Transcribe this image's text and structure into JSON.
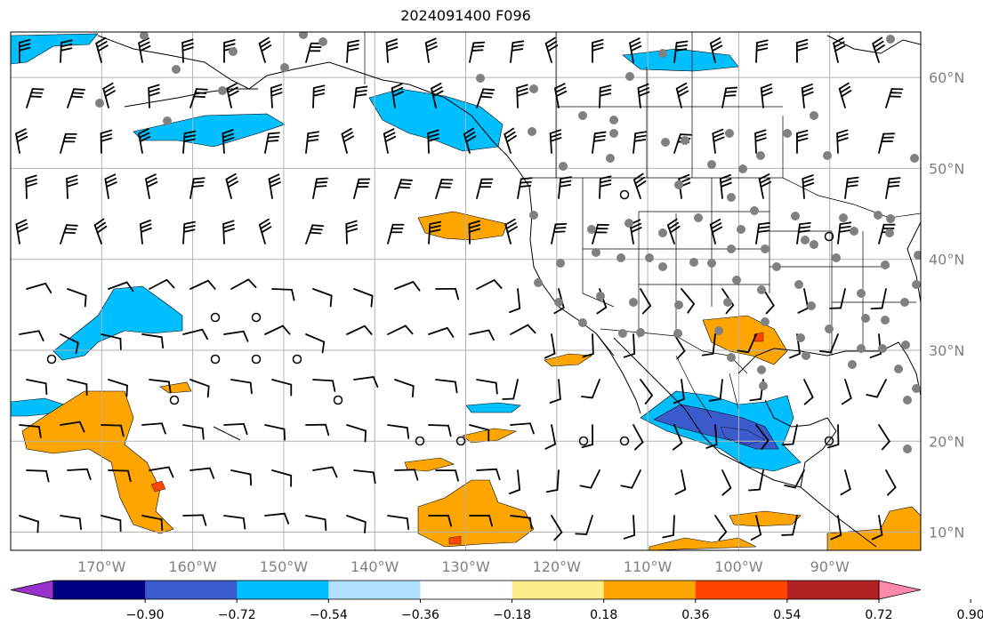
{
  "title": "2024091400 F096",
  "map": {
    "projection": "plate-carree",
    "lon_range": [
      -180,
      -80
    ],
    "lat_range": [
      8,
      65
    ],
    "grid": true,
    "lon_labels": [
      "170°W",
      "160°W",
      "150°W",
      "140°W",
      "130°W",
      "120°W",
      "110°W",
      "100°W",
      "90°W"
    ],
    "lat_labels": [
      "60°N",
      "50°N",
      "40°N",
      "30°N",
      "20°N",
      "10°N"
    ],
    "lon_ticks": [
      -170,
      -160,
      -150,
      -140,
      -130,
      -120,
      -110,
      -100,
      -90
    ],
    "lat_ticks": [
      60,
      50,
      40,
      30,
      20,
      10
    ],
    "features": [
      "coastlines",
      "country-borders",
      "us-state-borders",
      "wind-barbs",
      "station-markers"
    ]
  },
  "colorbar": {
    "levels": [
      "−0.90",
      "−0.72",
      "−0.54",
      "−0.36",
      "−0.18",
      "0.18",
      "0.36",
      "0.54",
      "0.72",
      "0.90"
    ],
    "colors": [
      "#9932cc",
      "#000080",
      "#3b5bcc",
      "#00bfff",
      "#b0e2ff",
      "#ffffff",
      "#ffec8b",
      "#ffa500",
      "#ff4500",
      "#b22222",
      "#ff88aa"
    ],
    "extend": "both"
  },
  "field_colors": {
    "light_blue": "#b0e2ff",
    "blue": "#00bfff",
    "mid_blue": "#3b5bcc",
    "navy": "#000080",
    "orange": "#ffa500",
    "red_orange": "#ff4500",
    "land_marker": "#808080"
  }
}
